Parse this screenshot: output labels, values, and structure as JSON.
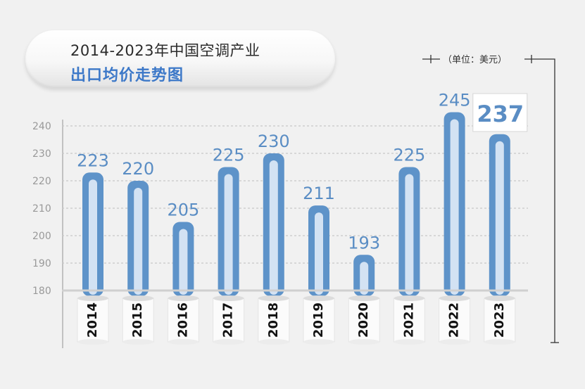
{
  "title": {
    "line1": "2014-2023年中国空调产业",
    "line2": "出口均价走势图"
  },
  "unit_label": "（单位：美元）",
  "colors": {
    "bar": "#5e93c9",
    "bar_inner": "#d3e2f3",
    "value_label": "#5a8dc4",
    "axis_text": "#999999",
    "grid": "#c8c8c8",
    "year_text": "#111111"
  },
  "chart_data": {
    "type": "bar",
    "title": "2014-2023年中国空调产业出口均价走势图",
    "unit": "（单位：美元）",
    "categories": [
      "2014",
      "2015",
      "2016",
      "2017",
      "2018",
      "2019",
      "2020",
      "2021",
      "2022",
      "2023"
    ],
    "values": [
      223,
      220,
      205,
      225,
      230,
      211,
      193,
      225,
      245,
      237
    ],
    "ylim": [
      180,
      250
    ],
    "yticks": [
      180,
      190,
      200,
      210,
      220,
      230,
      240
    ],
    "grid": true,
    "highlight_last": true
  }
}
